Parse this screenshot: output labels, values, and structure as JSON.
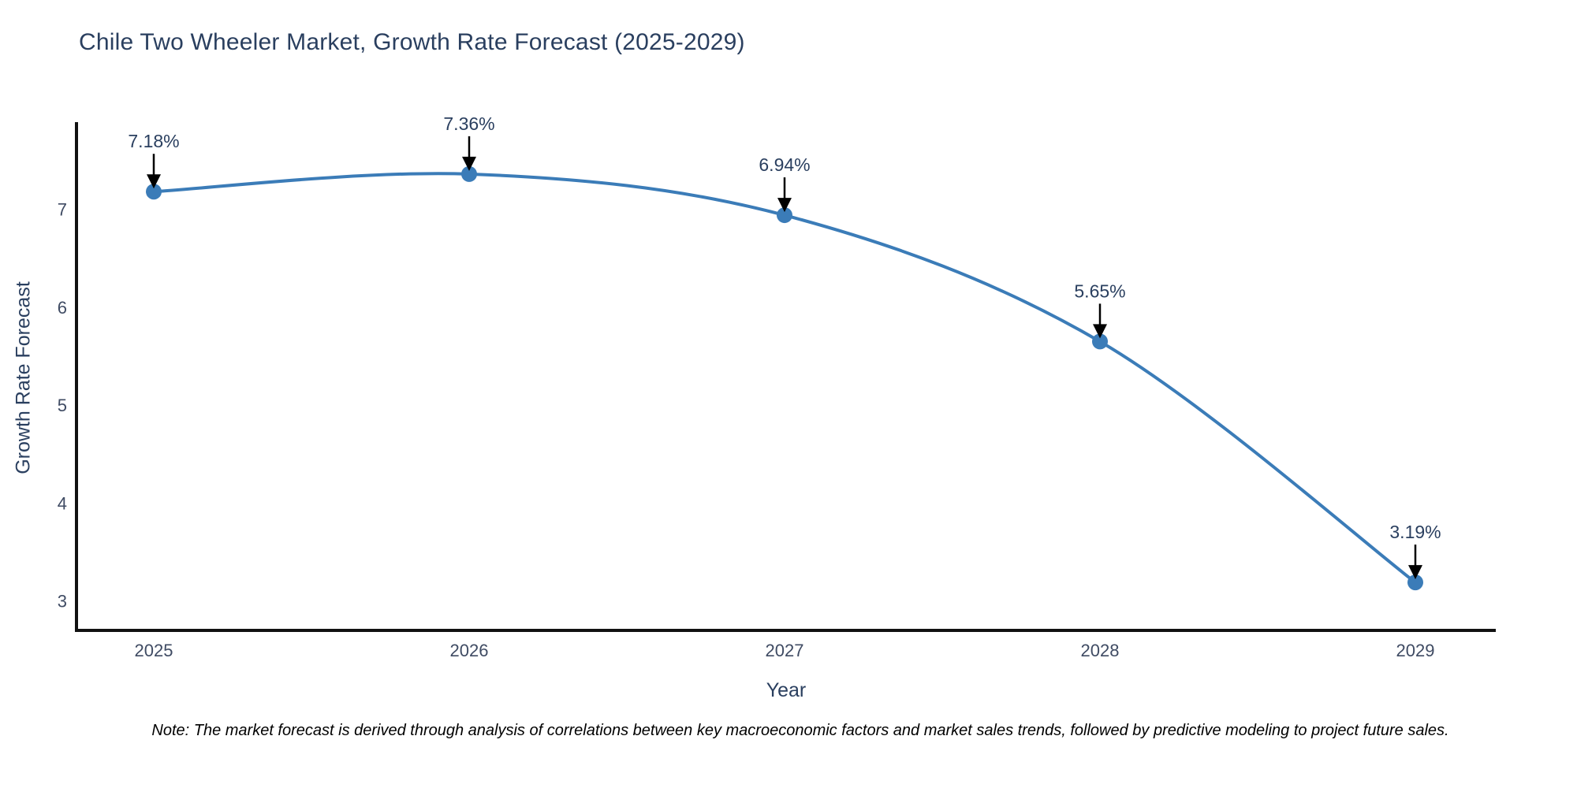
{
  "note": "Note: The market forecast is derived through analysis of correlations between key macroeconomic factors and market sales trends, followed by predictive modeling to project future sales.",
  "chart_data": {
    "type": "line",
    "title": "Chile Two Wheeler Market, Growth Rate Forecast (2025-2029)",
    "xlabel": "Year",
    "ylabel": "Growth Rate Forecast",
    "x": [
      2025,
      2026,
      2027,
      2028,
      2029
    ],
    "values": [
      7.18,
      7.36,
      6.94,
      5.65,
      3.19
    ],
    "point_labels": [
      "7.18%",
      "7.36%",
      "6.94%",
      "5.65%",
      "3.19%"
    ],
    "xticks": [
      2025,
      2026,
      2027,
      2028,
      2029
    ],
    "yticks": [
      3,
      4,
      5,
      6,
      7
    ],
    "xlim": [
      2024.755,
      2029.255
    ],
    "ylim": [
      2.7,
      7.89
    ],
    "grid": false,
    "legend": "none",
    "line_shape": "spline",
    "colors": {
      "line": "#3b7cb8",
      "marker": "#3b7cb8",
      "axis_line": "#111111",
      "tick_text": "#3f4b63",
      "title_text": "#2a3f5f",
      "annotation_text": "#2a3f5f",
      "annotation_arrow": "#000000",
      "background": "#ffffff"
    }
  }
}
